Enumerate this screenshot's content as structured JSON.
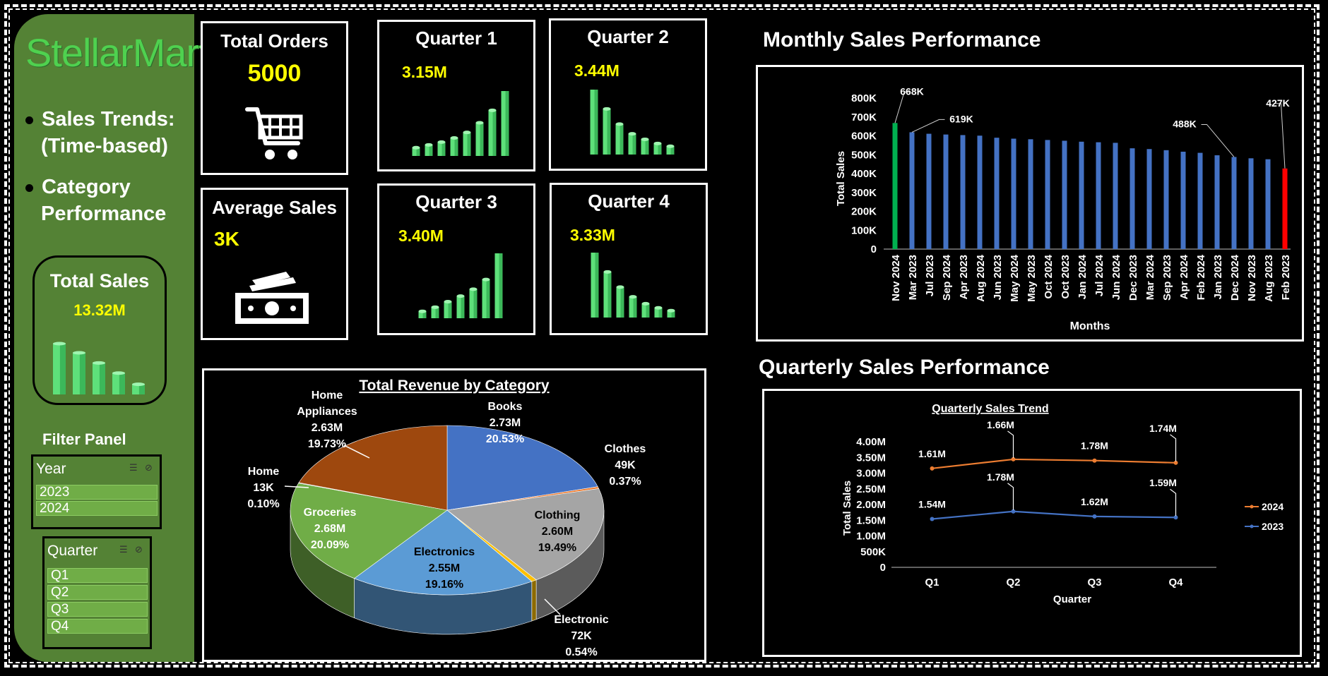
{
  "sidebar": {
    "logo": "StellarMart",
    "nav": [
      {
        "line1": "Sales Trends:",
        "line2": "(Time-based)"
      },
      {
        "line1": "Category",
        "line2": "Performance"
      }
    ],
    "total_sales": {
      "title": "Total Sales",
      "value": "13.32M",
      "bars": [
        1.0,
        0.82,
        0.62,
        0.42,
        0.2
      ]
    },
    "filter_panel_title": "Filter Panel",
    "year_slicer": {
      "title": "Year",
      "items": [
        "2023",
        "2024"
      ]
    },
    "quarter_slicer": {
      "title": "Quarter",
      "items": [
        "Q1",
        "Q2",
        "Q3",
        "Q4"
      ]
    }
  },
  "kpis": {
    "total_orders": {
      "title": "Total Orders",
      "value": "5000",
      "icon": "shopping-cart-icon"
    },
    "average_sales": {
      "title": "Average Sales",
      "value": "3K",
      "icon": "cash-icon"
    },
    "quarters": [
      {
        "title": "Quarter 1",
        "value": "3.15M",
        "bars": [
          0.12,
          0.16,
          0.2,
          0.26,
          0.34,
          0.48,
          0.66,
          1.0
        ]
      },
      {
        "title": "Quarter 2",
        "value": "3.44M",
        "bars": [
          1.0,
          0.66,
          0.44,
          0.3,
          0.22,
          0.16,
          0.12
        ]
      },
      {
        "title": "Quarter 3",
        "value": "3.40M",
        "bars": [
          0.1,
          0.16,
          0.24,
          0.32,
          0.42,
          0.56,
          1.0
        ]
      },
      {
        "title": "Quarter 4",
        "value": "3.33M",
        "bars": [
          1.0,
          0.66,
          0.44,
          0.3,
          0.2,
          0.14,
          0.1
        ]
      }
    ]
  },
  "sections": {
    "monthly_title": "Monthly Sales Performance",
    "quarterly_title": "Quarterly Sales Performance"
  },
  "colors": {
    "sidebar_green": "#548235",
    "logo_green": "#4fd14f",
    "kpi_value": "#ffff00",
    "bar_blue": "#4472c4",
    "bar_max": "#00b050",
    "bar_min": "#ff0000",
    "series_2024": "#ed7d31",
    "series_2023": "#4472c4"
  },
  "chart_data": [
    {
      "type": "bar",
      "id": "monthly",
      "title": "",
      "xlabel": "Months",
      "ylabel": "Total Sales",
      "ylim": [
        0,
        800000
      ],
      "yticks": [
        "0",
        "100K",
        "200K",
        "300K",
        "400K",
        "500K",
        "600K",
        "700K",
        "800K"
      ],
      "categories": [
        "Nov 2024",
        "Mar 2023",
        "Jul 2023",
        "Sep 2024",
        "Apr 2023",
        "Aug 2024",
        "Jun 2023",
        "May 2024",
        "May 2023",
        "Oct 2024",
        "Oct 2023",
        "Jan 2024",
        "Jul 2024",
        "Jun 2024",
        "Dec 2023",
        "Mar 2024",
        "Sep 2023",
        "Apr 2024",
        "Feb 2024",
        "Jan 2023",
        "Dec 2024",
        "Nov 2023",
        "Aug 2023",
        "Feb 2023"
      ],
      "values": [
        668000,
        619000,
        611000,
        607000,
        604000,
        601000,
        590000,
        585000,
        582000,
        578000,
        574000,
        569000,
        566000,
        563000,
        534000,
        530000,
        524000,
        516000,
        510000,
        497000,
        488000,
        481000,
        476000,
        427000
      ],
      "data_labels": [
        {
          "index": 0,
          "text": "668K"
        },
        {
          "index": 1,
          "text": "619K"
        },
        {
          "index": 20,
          "text": "488K"
        },
        {
          "index": 23,
          "text": "427K"
        }
      ]
    },
    {
      "type": "pie",
      "id": "category",
      "title": "Total Revenue by Category",
      "slices": [
        {
          "name": "Books",
          "value": "2.73M",
          "pct": 20.53,
          "color": "#4472c4"
        },
        {
          "name": "Clothes",
          "value": "49K",
          "pct": 0.37,
          "color": "#ed7d31"
        },
        {
          "name": "Clothing",
          "value": "2.60M",
          "pct": 19.49,
          "color": "#a5a5a5"
        },
        {
          "name": "Electronic",
          "value": "72K",
          "pct": 0.54,
          "color": "#ffc000"
        },
        {
          "name": "Electronics",
          "value": "2.55M",
          "pct": 19.16,
          "color": "#5b9bd5"
        },
        {
          "name": "Groceries",
          "value": "2.68M",
          "pct": 20.09,
          "color": "#70ad47"
        },
        {
          "name": "Home",
          "value": "13K",
          "pct": 0.1,
          "color": "#264478"
        },
        {
          "name": "Home Appliances",
          "value": "2.63M",
          "pct": 19.73,
          "color": "#9e480e"
        }
      ],
      "pct_labels": [
        "20.53%",
        "0.37%",
        "19.49%",
        "0.54%",
        "19.16%",
        "20.09%",
        "0.10%",
        "19.73%"
      ]
    },
    {
      "type": "line",
      "id": "quarterly",
      "title": "Quarterly Sales Trend",
      "xlabel": "Quarter",
      "ylabel": "Total Sales",
      "ylim": [
        0,
        4000000
      ],
      "yticks": [
        "0",
        "500K",
        "1.00M",
        "1.50M",
        "2.00M",
        "2.50M",
        "3.00M",
        "3.50M",
        "4.00M"
      ],
      "categories": [
        "Q1",
        "Q2",
        "Q3",
        "Q4"
      ],
      "legend": "right",
      "series": [
        {
          "name": "2024",
          "values": [
            3150000,
            3440000,
            3400000,
            3330000
          ],
          "labels": [
            "1.61M",
            "1.66M",
            "1.78M",
            "1.74M"
          ],
          "color": "#ed7d31"
        },
        {
          "name": "2023",
          "values": [
            1540000,
            1780000,
            1620000,
            1590000
          ],
          "labels": [
            "1.54M",
            "1.78M",
            "1.62M",
            "1.59M"
          ],
          "color": "#4472c4"
        }
      ]
    }
  ]
}
